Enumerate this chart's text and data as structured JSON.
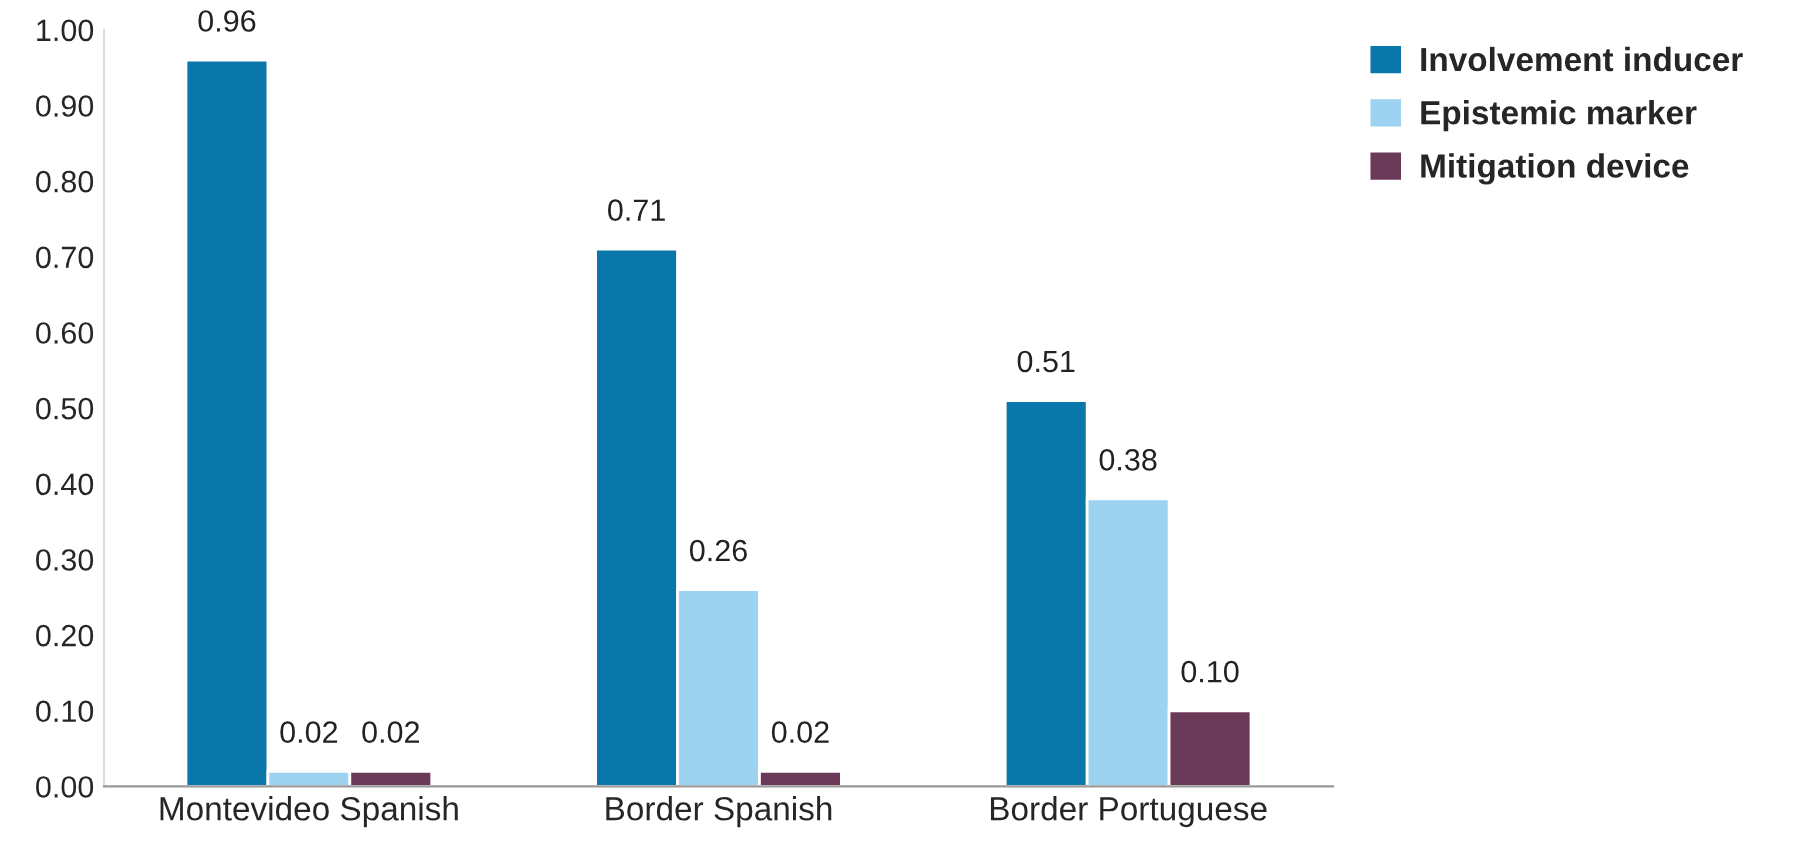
{
  "chart_data": {
    "type": "bar",
    "categories": [
      "Montevideo Spanish",
      "Border Spanish",
      "Border Portuguese"
    ],
    "series": [
      {
        "name": "Involvement inducer",
        "color": "#0a77aa",
        "values": [
          0.96,
          0.71,
          0.51
        ],
        "value_labels": [
          "0.96",
          "0.71",
          "0.51"
        ]
      },
      {
        "name": "Epistemic marker",
        "color": "#9dd3f1",
        "values": [
          0.02,
          0.26,
          0.38
        ],
        "value_labels": [
          "0.02",
          "0.26",
          "0.38"
        ]
      },
      {
        "name": "Mitigation device",
        "color": "#6b3a58",
        "values": [
          0.02,
          0.02,
          0.1
        ],
        "value_labels": [
          "0.02",
          "0.02",
          "0.10"
        ]
      }
    ],
    "ylim": [
      0,
      1.0
    ],
    "yticks": [
      {
        "value": 0,
        "label": "0.00"
      },
      {
        "value": 0.1,
        "label": "0.10"
      },
      {
        "value": 0.2,
        "label": "0.20"
      },
      {
        "value": 0.3,
        "label": "0.30"
      },
      {
        "value": 0.4,
        "label": "0.40"
      },
      {
        "value": 0.5,
        "label": "0.50"
      },
      {
        "value": 0.6,
        "label": "0.60"
      },
      {
        "value": 0.7,
        "label": "0.70"
      },
      {
        "value": 0.8,
        "label": "0.80"
      },
      {
        "value": 0.9,
        "label": "0.90"
      },
      {
        "value": 1.0,
        "label": "1.00"
      }
    ],
    "grid": false,
    "legend": "top right"
  }
}
